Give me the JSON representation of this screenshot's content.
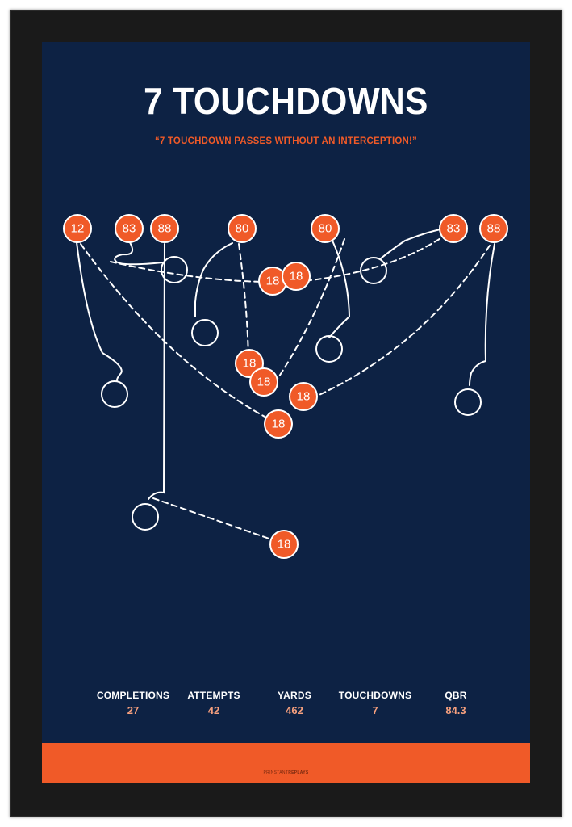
{
  "poster": {
    "title": "7 TOUCHDOWNS",
    "subtitle": "“7 TOUCHDOWN PASSES WITHOUT AN INTERCEPTION!”",
    "colors": {
      "background": "#0d2244",
      "accent": "#f05a28",
      "route": "#ffffff",
      "frame": "#1a1a1a"
    }
  },
  "players": {
    "receivers": [
      "12",
      "83",
      "88",
      "80",
      "80",
      "83",
      "88"
    ],
    "passer": "18"
  },
  "stats": [
    {
      "label": "COMPLETIONS",
      "value": "27"
    },
    {
      "label": "ATTEMPTS",
      "value": "42"
    },
    {
      "label": "YARDS",
      "value": "462"
    },
    {
      "label": "TOUCHDOWNS",
      "value": "7"
    },
    {
      "label": "QBR",
      "value": "84.3"
    }
  ],
  "brand": {
    "prefix": "PRINSTANT",
    "name": "REPLAYS"
  }
}
